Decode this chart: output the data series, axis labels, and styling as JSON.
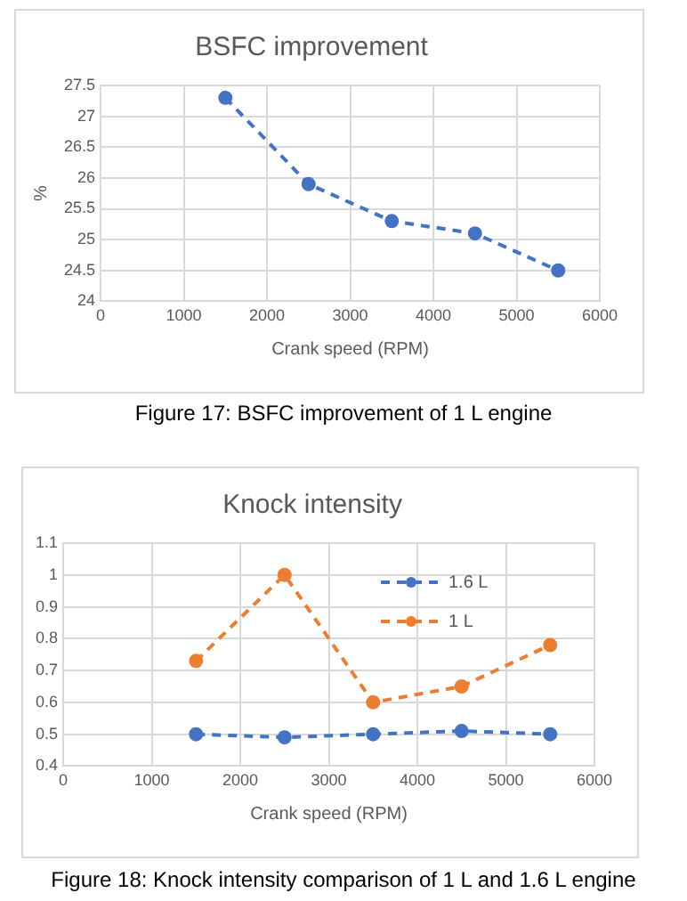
{
  "chart_data": [
    {
      "type": "line",
      "title": "BSFC improvement",
      "xlabel": "Crank speed (RPM)",
      "ylabel": "%",
      "x": [
        1500,
        2500,
        3500,
        4500,
        5500
      ],
      "series": [
        {
          "color": "#4472c4",
          "values": [
            27.3,
            25.9,
            25.3,
            25.1,
            24.5
          ]
        }
      ],
      "xlim": [
        0,
        6000
      ],
      "xticks": [
        0,
        1000,
        2000,
        3000,
        4000,
        5000,
        6000
      ],
      "ylim": [
        24,
        27.5
      ],
      "yticks": [
        24,
        24.5,
        25,
        25.5,
        26,
        26.5,
        27,
        27.5
      ],
      "grid": true,
      "legend": false,
      "marker": "circle",
      "line_style": "dashed",
      "annotations": [
        "Figure 17: BSFC improvement of 1 L engine"
      ]
    },
    {
      "type": "line",
      "title": "Knock intensity",
      "xlabel": "Crank speed (RPM)",
      "x": [
        1500,
        2500,
        3500,
        4500,
        5500
      ],
      "series": [
        {
          "name": "1.6 L",
          "color": "#4472c4",
          "values": [
            0.5,
            0.49,
            0.5,
            0.51,
            0.5
          ]
        },
        {
          "name": "1 L",
          "color": "#ed7d31",
          "values": [
            0.73,
            1.0,
            0.6,
            0.65,
            0.78
          ]
        }
      ],
      "xlim": [
        0,
        6000
      ],
      "xticks": [
        0,
        1000,
        2000,
        3000,
        4000,
        5000,
        6000
      ],
      "ylim": [
        0.4,
        1.1
      ],
      "yticks": [
        0.4,
        0.5,
        0.6,
        0.7,
        0.8,
        0.9,
        1,
        1.1
      ],
      "grid": true,
      "legend": "top right",
      "marker": "circle",
      "line_style": "dashed",
      "annotations": [
        "Figure 18: Knock intensity comparison of 1 L and 1.6 L engine"
      ]
    }
  ]
}
